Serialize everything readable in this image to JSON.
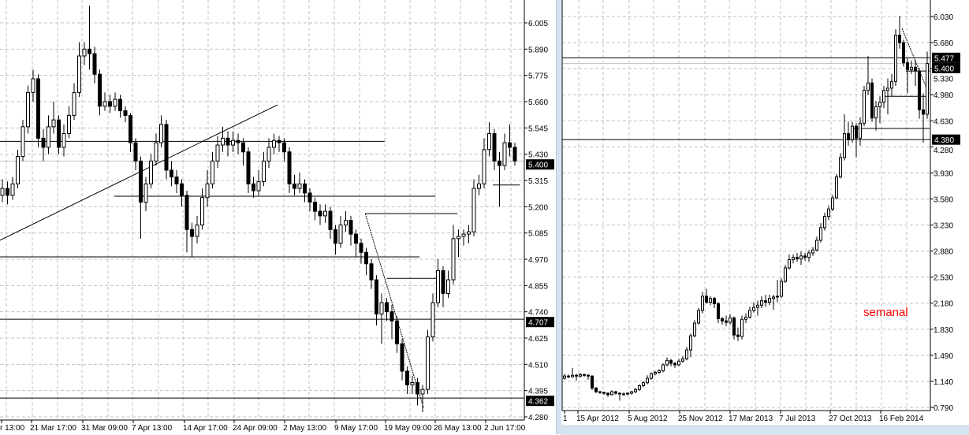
{
  "colors": {
    "candle": "#000000",
    "bull_fill": "#ffffff",
    "bear_fill": "#000000",
    "grid": "#c0c0c0",
    "label_bg": "#000000",
    "label_text": "#ffffff",
    "annotation": "#ff0000",
    "bid_line": "#c0c0c0"
  },
  "annotation": "semanal",
  "chart_data": [
    {
      "type": "candlestick",
      "grid": true,
      "ylim": [
        4.266,
        6.105
      ],
      "y_ticks": [
        "6.005",
        "5.890",
        "5.775",
        "5.660",
        "5.545",
        "5.430",
        "5.315",
        "5.200",
        "5.085",
        "4.970",
        "4.855",
        "4.740",
        "4.625",
        "4.510",
        "4.395",
        "4.280"
      ],
      "x_ticks": [
        "r 13:00",
        "21 Mar 17:00",
        "31 Mar 09:00",
        "7 Apr 13:00",
        "14 Apr 17:00",
        "24 Apr 09:00",
        "2 May 13:00",
        "9 May 17:00",
        "19 May 09:00",
        "26 May 13:00",
        "2 Jun 17:00"
      ],
      "price_labels": [
        "5.400",
        "4.707",
        "4.362"
      ],
      "bid": 5.4,
      "candles": [
        [
          5.25,
          5.32,
          5.22,
          5.28
        ],
        [
          5.28,
          5.31,
          5.21,
          5.25
        ],
        [
          5.25,
          5.33,
          5.23,
          5.3
        ],
        [
          5.3,
          5.45,
          5.28,
          5.42
        ],
        [
          5.42,
          5.58,
          5.4,
          5.55
        ],
        [
          5.55,
          5.73,
          5.52,
          5.7
        ],
        [
          5.7,
          5.8,
          5.66,
          5.76
        ],
        [
          5.76,
          5.78,
          5.46,
          5.5
        ],
        [
          5.5,
          5.54,
          5.4,
          5.46
        ],
        [
          5.46,
          5.6,
          5.43,
          5.55
        ],
        [
          5.55,
          5.66,
          5.52,
          5.58
        ],
        [
          5.58,
          5.6,
          5.43,
          5.46
        ],
        [
          5.46,
          5.56,
          5.42,
          5.52
        ],
        [
          5.52,
          5.64,
          5.5,
          5.6
        ],
        [
          5.6,
          5.74,
          5.58,
          5.7
        ],
        [
          5.7,
          5.92,
          5.68,
          5.86
        ],
        [
          5.86,
          5.92,
          5.82,
          5.89
        ],
        [
          5.89,
          6.08,
          5.8,
          5.87
        ],
        [
          5.87,
          5.9,
          5.74,
          5.78
        ],
        [
          5.78,
          5.8,
          5.6,
          5.64
        ],
        [
          5.64,
          5.7,
          5.62,
          5.66
        ],
        [
          5.66,
          5.69,
          5.61,
          5.64
        ],
        [
          5.64,
          5.7,
          5.62,
          5.67
        ],
        [
          5.67,
          5.69,
          5.59,
          5.62
        ],
        [
          5.62,
          5.64,
          5.57,
          5.6
        ],
        [
          5.6,
          5.61,
          5.44,
          5.48
        ],
        [
          5.48,
          5.5,
          5.36,
          5.4
        ],
        [
          5.4,
          5.42,
          5.06,
          5.22
        ],
        [
          5.22,
          5.33,
          5.18,
          5.3
        ],
        [
          5.3,
          5.43,
          5.28,
          5.4
        ],
        [
          5.4,
          5.52,
          5.38,
          5.48
        ],
        [
          5.48,
          5.6,
          5.46,
          5.56
        ],
        [
          5.56,
          5.58,
          5.32,
          5.36
        ],
        [
          5.36,
          5.4,
          5.29,
          5.33
        ],
        [
          5.33,
          5.36,
          5.26,
          5.3
        ],
        [
          5.3,
          5.32,
          5.2,
          5.25
        ],
        [
          5.25,
          5.27,
          5.0,
          5.1
        ],
        [
          5.1,
          5.13,
          4.98,
          5.07
        ],
        [
          5.07,
          5.16,
          5.04,
          5.12
        ],
        [
          5.12,
          5.28,
          5.1,
          5.24
        ],
        [
          5.24,
          5.36,
          5.2,
          5.3
        ],
        [
          5.3,
          5.44,
          5.28,
          5.4
        ],
        [
          5.4,
          5.51,
          5.37,
          5.47
        ],
        [
          5.47,
          5.55,
          5.44,
          5.5
        ],
        [
          5.5,
          5.53,
          5.42,
          5.47
        ],
        [
          5.47,
          5.53,
          5.44,
          5.49
        ],
        [
          5.49,
          5.52,
          5.43,
          5.48
        ],
        [
          5.48,
          5.5,
          5.38,
          5.44
        ],
        [
          5.44,
          5.46,
          5.26,
          5.3
        ],
        [
          5.3,
          5.33,
          5.24,
          5.27
        ],
        [
          5.27,
          5.36,
          5.25,
          5.31
        ],
        [
          5.31,
          5.44,
          5.29,
          5.4
        ],
        [
          5.4,
          5.5,
          5.37,
          5.46
        ],
        [
          5.46,
          5.52,
          5.43,
          5.49
        ],
        [
          5.49,
          5.51,
          5.44,
          5.48
        ],
        [
          5.48,
          5.5,
          5.4,
          5.44
        ],
        [
          5.44,
          5.46,
          5.26,
          5.3
        ],
        [
          5.3,
          5.34,
          5.25,
          5.28
        ],
        [
          5.28,
          5.35,
          5.26,
          5.3
        ],
        [
          5.3,
          5.32,
          5.22,
          5.26
        ],
        [
          5.26,
          5.28,
          5.18,
          5.22
        ],
        [
          5.22,
          5.24,
          5.14,
          5.18
        ],
        [
          5.18,
          5.21,
          5.12,
          5.16
        ],
        [
          5.16,
          5.21,
          5.13,
          5.18
        ],
        [
          5.18,
          5.2,
          5.06,
          5.1
        ],
        [
          5.1,
          5.12,
          4.99,
          5.04
        ],
        [
          5.04,
          5.16,
          5.02,
          5.12
        ],
        [
          5.12,
          5.18,
          5.09,
          5.14
        ],
        [
          5.14,
          5.16,
          5.03,
          5.08
        ],
        [
          5.08,
          5.1,
          4.98,
          5.04
        ],
        [
          5.04,
          5.06,
          4.95,
          5.0
        ],
        [
          5.0,
          5.02,
          4.9,
          4.95
        ],
        [
          4.95,
          4.97,
          4.84,
          4.88
        ],
        [
          4.88,
          4.9,
          4.68,
          4.73
        ],
        [
          4.73,
          4.82,
          4.6,
          4.78
        ],
        [
          4.78,
          4.8,
          4.7,
          4.74
        ],
        [
          4.74,
          4.77,
          4.62,
          4.7
        ],
        [
          4.7,
          4.72,
          4.56,
          4.6
        ],
        [
          4.6,
          4.62,
          4.44,
          4.48
        ],
        [
          4.48,
          4.5,
          4.38,
          4.42
        ],
        [
          4.42,
          4.46,
          4.38,
          4.43
        ],
        [
          4.43,
          4.45,
          4.33,
          4.38
        ],
        [
          4.38,
          4.42,
          4.3,
          4.4
        ],
        [
          4.4,
          4.66,
          4.38,
          4.63
        ],
        [
          4.63,
          4.82,
          4.61,
          4.78
        ],
        [
          4.78,
          4.97,
          4.76,
          4.92
        ],
        [
          4.92,
          4.94,
          4.76,
          4.82
        ],
        [
          4.82,
          4.92,
          4.8,
          4.88
        ],
        [
          4.88,
          5.12,
          4.86,
          5.06
        ],
        [
          5.06,
          5.1,
          4.98,
          5.07
        ],
        [
          5.07,
          5.1,
          5.03,
          5.08
        ],
        [
          5.08,
          5.12,
          5.04,
          5.09
        ],
        [
          5.09,
          5.32,
          5.07,
          5.28
        ],
        [
          5.28,
          5.34,
          5.25,
          5.3
        ],
        [
          5.3,
          5.5,
          5.28,
          5.45
        ],
        [
          5.45,
          5.57,
          5.42,
          5.52
        ],
        [
          5.52,
          5.54,
          5.36,
          5.4
        ],
        [
          5.4,
          5.44,
          5.2,
          5.38
        ],
        [
          5.38,
          5.52,
          5.36,
          5.48
        ],
        [
          5.48,
          5.56,
          5.42,
          5.46
        ],
        [
          5.46,
          5.48,
          5.38,
          5.4
        ]
      ],
      "hlines": [
        {
          "price": 5.486,
          "from": -1,
          "to": 74.6
        },
        {
          "price": 5.246,
          "from": 21.8,
          "to": 84.5
        },
        {
          "price": 4.98,
          "from": -1,
          "to": 81.4
        },
        {
          "price": 4.707,
          "from": -1,
          "to": 102
        },
        {
          "price": 4.362,
          "from": -1,
          "to": 102
        },
        {
          "price": 5.17,
          "from": 70.8,
          "to": 88.8
        },
        {
          "price": 4.886,
          "from": 75,
          "to": 85
        },
        {
          "price": 5.295,
          "from": 95.7,
          "to": 101
        }
      ],
      "trendlines": [
        {
          "from": [
            -0.5,
            5.053
          ],
          "to": [
            53.7,
            5.646
          ]
        },
        {
          "from": [
            70.8,
            5.17
          ],
          "to": [
            82.2,
            4.318
          ]
        }
      ]
    },
    {
      "type": "candlestick",
      "grid": true,
      "ylim": [
        0.747,
        6.252
      ],
      "y_ticks": [
        "6.030",
        "5.680",
        "5.330",
        "4.980",
        "4.630",
        "4.280",
        "3.930",
        "3.580",
        "3.230",
        "2.880",
        "2.530",
        "2.180",
        "1.830",
        "1.490",
        "1.140",
        "0.790"
      ],
      "x_ticks": [
        "1",
        "15 Apr 2012",
        "5 Aug 2012",
        "25 Nov 2012",
        "17 Mar 2013",
        "7 Jul 2013",
        "27 Oct 2013",
        "16 Feb 2014"
      ],
      "price_labels": [
        "5.477",
        "5.400",
        "4.380"
      ],
      "bid": 5.4,
      "candles": [
        [
          1.18,
          1.24,
          1.16,
          1.21
        ],
        [
          1.21,
          1.23,
          1.18,
          1.2
        ],
        [
          1.2,
          1.32,
          1.19,
          1.22
        ],
        [
          1.22,
          1.24,
          1.15,
          1.21
        ],
        [
          1.21,
          1.25,
          1.19,
          1.23
        ],
        [
          1.23,
          1.24,
          1.2,
          1.22
        ],
        [
          1.22,
          1.24,
          1.16,
          1.21
        ],
        [
          1.21,
          1.22,
          1.02,
          1.05
        ],
        [
          1.05,
          1.06,
          0.98,
          1.0
        ],
        [
          1.0,
          1.01,
          0.97,
          0.99
        ],
        [
          0.99,
          1.0,
          0.96,
          0.98
        ],
        [
          0.98,
          0.99,
          0.93,
          0.96
        ],
        [
          0.96,
          1.02,
          0.95,
          1.0
        ],
        [
          1.0,
          1.01,
          0.96,
          0.98
        ],
        [
          0.98,
          0.99,
          0.88,
          0.97
        ],
        [
          0.97,
          0.99,
          0.95,
          0.97
        ],
        [
          0.97,
          0.99,
          0.95,
          0.98
        ],
        [
          0.98,
          1.01,
          0.96,
          1.0
        ],
        [
          1.0,
          1.05,
          0.98,
          1.03
        ],
        [
          1.03,
          1.1,
          1.01,
          1.08
        ],
        [
          1.08,
          1.14,
          1.06,
          1.12
        ],
        [
          1.12,
          1.22,
          1.1,
          1.18
        ],
        [
          1.18,
          1.26,
          1.16,
          1.24
        ],
        [
          1.24,
          1.28,
          1.22,
          1.26
        ],
        [
          1.26,
          1.3,
          1.24,
          1.28
        ],
        [
          1.28,
          1.38,
          1.26,
          1.36
        ],
        [
          1.36,
          1.46,
          1.34,
          1.42
        ],
        [
          1.42,
          1.44,
          1.34,
          1.38
        ],
        [
          1.38,
          1.4,
          1.32,
          1.36
        ],
        [
          1.36,
          1.44,
          1.34,
          1.41
        ],
        [
          1.41,
          1.48,
          1.39,
          1.44
        ],
        [
          1.44,
          1.6,
          1.42,
          1.56
        ],
        [
          1.56,
          1.78,
          1.46,
          1.75
        ],
        [
          1.75,
          1.96,
          1.73,
          1.92
        ],
        [
          1.92,
          2.12,
          1.9,
          2.09
        ],
        [
          2.09,
          2.34,
          2.05,
          2.28
        ],
        [
          2.28,
          2.38,
          2.18,
          2.2
        ],
        [
          2.2,
          2.28,
          2.16,
          2.25
        ],
        [
          2.25,
          2.27,
          2.12,
          2.18
        ],
        [
          2.18,
          2.2,
          1.92,
          1.98
        ],
        [
          1.98,
          2.0,
          1.9,
          1.95
        ],
        [
          1.95,
          2.02,
          1.88,
          1.93
        ],
        [
          1.93,
          2.04,
          1.9,
          1.99
        ],
        [
          1.99,
          2.01,
          1.7,
          1.76
        ],
        [
          1.76,
          1.86,
          1.68,
          1.74
        ],
        [
          1.74,
          2.02,
          1.7,
          1.97
        ],
        [
          1.97,
          2.05,
          1.92,
          2.0
        ],
        [
          2.0,
          2.14,
          1.98,
          2.09
        ],
        [
          2.09,
          2.2,
          2.06,
          2.13
        ],
        [
          2.13,
          2.22,
          2.02,
          2.16
        ],
        [
          2.16,
          2.28,
          2.12,
          2.22
        ],
        [
          2.22,
          2.3,
          2.14,
          2.2
        ],
        [
          2.2,
          2.3,
          2.16,
          2.25
        ],
        [
          2.25,
          2.3,
          2.1,
          2.27
        ],
        [
          2.27,
          2.5,
          2.2,
          2.28
        ],
        [
          2.28,
          2.52,
          2.26,
          2.48
        ],
        [
          2.48,
          2.7,
          2.46,
          2.66
        ],
        [
          2.66,
          2.84,
          2.64,
          2.77
        ],
        [
          2.77,
          2.84,
          2.72,
          2.8
        ],
        [
          2.8,
          2.86,
          2.74,
          2.78
        ],
        [
          2.78,
          2.88,
          2.7,
          2.82
        ],
        [
          2.82,
          2.86,
          2.76,
          2.8
        ],
        [
          2.8,
          2.9,
          2.74,
          2.86
        ],
        [
          2.86,
          2.94,
          2.82,
          2.9
        ],
        [
          2.9,
          3.08,
          2.88,
          3.03
        ],
        [
          3.03,
          3.26,
          3.0,
          3.2
        ],
        [
          3.2,
          3.4,
          3.16,
          3.35
        ],
        [
          3.35,
          3.5,
          3.3,
          3.45
        ],
        [
          3.45,
          3.64,
          3.42,
          3.6
        ],
        [
          3.6,
          3.92,
          3.58,
          3.88
        ],
        [
          3.88,
          4.2,
          3.86,
          4.14
        ],
        [
          4.14,
          4.72,
          4.1,
          4.46
        ],
        [
          4.46,
          4.62,
          4.3,
          4.38
        ],
        [
          4.38,
          4.62,
          4.34,
          4.56
        ],
        [
          4.56,
          4.6,
          4.14,
          4.4
        ],
        [
          4.4,
          4.68,
          4.3,
          4.6
        ],
        [
          4.6,
          5.1,
          4.56,
          5.04
        ],
        [
          5.04,
          5.5,
          4.98,
          5.14
        ],
        [
          5.14,
          5.2,
          4.62,
          4.67
        ],
        [
          4.67,
          4.9,
          4.5,
          4.82
        ],
        [
          4.82,
          4.96,
          4.6,
          4.88
        ],
        [
          4.88,
          5.1,
          4.8,
          5.04
        ],
        [
          5.04,
          5.2,
          4.72,
          5.07
        ],
        [
          5.07,
          5.26,
          4.96,
          5.16
        ],
        [
          5.16,
          5.86,
          5.1,
          5.78
        ],
        [
          5.78,
          6.04,
          5.6,
          5.68
        ],
        [
          5.68,
          5.72,
          5.36,
          5.41
        ],
        [
          5.41,
          5.48,
          5.0,
          5.32
        ],
        [
          5.32,
          5.44,
          5.26,
          5.35
        ],
        [
          5.35,
          5.44,
          5.1,
          5.3
        ],
        [
          5.3,
          5.34,
          4.66,
          4.78
        ],
        [
          4.78,
          5.0,
          4.34,
          4.72
        ],
        [
          4.72,
          5.56,
          4.66,
          5.4
        ]
      ],
      "hlines": [
        {
          "price": 5.477,
          "from": -1,
          "to": 93.5
        },
        {
          "price": 4.38,
          "from": -1,
          "to": 93.5
        },
        {
          "price": 4.96,
          "from": 80.6,
          "to": 92
        },
        {
          "price": 4.53,
          "from": 72.6,
          "to": 92.6
        },
        {
          "price": 5.3,
          "from": 86.6,
          "to": 92.6
        }
      ],
      "trendlines": [
        {
          "from": [
            85.6,
            5.87
          ],
          "to": [
            92.4,
            5.0
          ]
        }
      ]
    }
  ]
}
